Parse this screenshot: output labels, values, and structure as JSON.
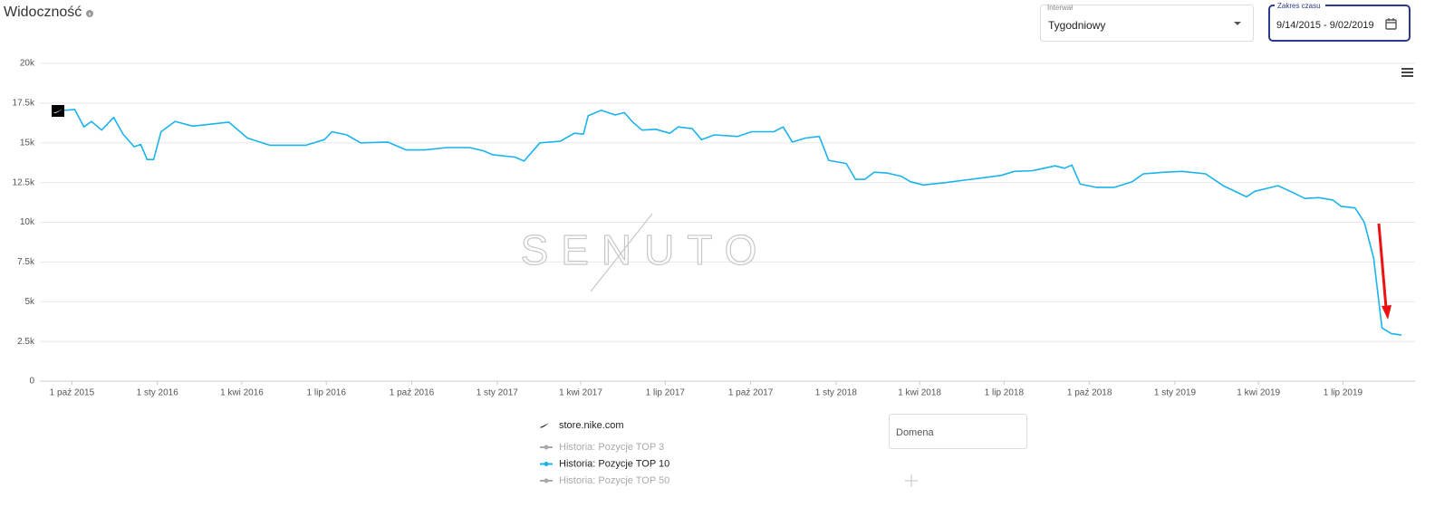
{
  "chart_data": {
    "type": "line",
    "title": "Widoczność",
    "domain": "store.nike.com",
    "watermark": "SENUTO",
    "x": [
      "2015-09-14",
      "2015-10-04",
      "2015-10-14",
      "2015-10-22",
      "2015-11-02",
      "2015-11-15",
      "2015-11-25",
      "2015-12-07",
      "2015-12-14",
      "2015-12-21",
      "2015-12-28",
      "2016-01-05",
      "2016-01-20",
      "2016-02-08",
      "2016-03-18",
      "2016-04-07",
      "2016-05-01",
      "2016-06-09",
      "2016-06-29",
      "2016-07-07",
      "2016-07-23",
      "2016-08-07",
      "2016-09-05",
      "2016-09-25",
      "2016-10-15",
      "2016-11-08",
      "2016-12-02",
      "2016-12-17",
      "2016-12-27",
      "2017-01-20",
      "2017-01-30",
      "2017-02-16",
      "2017-03-10",
      "2017-03-25",
      "2017-04-04",
      "2017-04-09",
      "2017-04-23",
      "2017-05-08",
      "2017-05-18",
      "2017-05-27",
      "2017-06-06",
      "2017-06-21",
      "2017-07-06",
      "2017-07-15",
      "2017-07-30",
      "2017-08-09",
      "2017-08-23",
      "2017-09-17",
      "2017-10-02",
      "2017-10-26",
      "2017-11-05",
      "2017-11-15",
      "2017-11-29",
      "2017-12-14",
      "2017-12-24",
      "2018-01-12",
      "2018-01-22",
      "2018-02-01",
      "2018-02-11",
      "2018-02-25",
      "2018-03-12",
      "2018-03-22",
      "2018-04-05",
      "2018-04-30",
      "2018-05-19",
      "2018-06-08",
      "2018-06-28",
      "2018-07-12",
      "2018-08-01",
      "2018-08-25",
      "2018-09-04",
      "2018-09-12",
      "2018-09-21",
      "2018-10-08",
      "2018-10-28",
      "2018-11-16",
      "2018-11-28",
      "2018-12-21",
      "2019-01-09",
      "2019-02-03",
      "2019-02-22",
      "2019-03-19",
      "2019-03-28",
      "2019-04-22",
      "2019-05-07",
      "2019-05-21",
      "2019-06-05",
      "2019-06-20",
      "2019-06-29",
      "2019-07-14",
      "2019-07-24",
      "2019-08-03",
      "2019-08-12",
      "2019-08-22",
      "2019-09-02"
    ],
    "series": [
      {
        "name": "Historia: Pozycje TOP 3",
        "color": "#aaaaaa",
        "visible": false
      },
      {
        "name": "Historia: Pozycje TOP 10",
        "color": "#1ab3ec",
        "visible": true,
        "values": [
          17000,
          17100,
          16000,
          16350,
          15800,
          16600,
          15550,
          14750,
          14900,
          13950,
          13950,
          15700,
          16350,
          16050,
          16300,
          15300,
          14850,
          14850,
          15200,
          15700,
          15500,
          15000,
          15050,
          14550,
          14550,
          14700,
          14700,
          14500,
          14250,
          14100,
          13850,
          15000,
          15100,
          15600,
          15550,
          16700,
          17050,
          16750,
          16900,
          16300,
          15800,
          15850,
          15600,
          16000,
          15900,
          15200,
          15500,
          15400,
          15700,
          15700,
          16000,
          15050,
          15300,
          15400,
          13900,
          13700,
          12700,
          12700,
          13150,
          13100,
          12900,
          12550,
          12350,
          12500,
          12650,
          12800,
          12950,
          13200,
          13250,
          13550,
          13400,
          13600,
          12400,
          12200,
          12200,
          12550,
          13050,
          13150,
          13200,
          13050,
          12300,
          11600,
          11950,
          12300,
          11900,
          11500,
          11550,
          11400,
          11000,
          10900,
          10000,
          7750,
          3350,
          3000,
          2900
        ]
      },
      {
        "name": "Historia: Pozycje TOP 50",
        "color": "#aaaaaa",
        "visible": false
      }
    ],
    "xlim": [
      "2015-09-14",
      "2019-09-02"
    ],
    "xticks": [
      {
        "value": "2015-10-01",
        "label": "1 paź 2015"
      },
      {
        "value": "2016-01-01",
        "label": "1 sty 2016"
      },
      {
        "value": "2016-04-01",
        "label": "1 kwi 2016"
      },
      {
        "value": "2016-07-01",
        "label": "1 lip 2016"
      },
      {
        "value": "2016-10-01",
        "label": "1 paź 2016"
      },
      {
        "value": "2017-01-01",
        "label": "1 sty 2017"
      },
      {
        "value": "2017-04-01",
        "label": "1 kwi 2017"
      },
      {
        "value": "2017-07-01",
        "label": "1 lip 2017"
      },
      {
        "value": "2017-10-01",
        "label": "1 paź 2017"
      },
      {
        "value": "2018-01-01",
        "label": "1 sty 2018"
      },
      {
        "value": "2018-04-01",
        "label": "1 kwi 2018"
      },
      {
        "value": "2018-07-01",
        "label": "1 lip 2018"
      },
      {
        "value": "2018-10-01",
        "label": "1 paź 2018"
      },
      {
        "value": "2019-01-01",
        "label": "1 sty 2019"
      },
      {
        "value": "2019-04-01",
        "label": "1 kwi 2019"
      },
      {
        "value": "2019-07-01",
        "label": "1 lip 2019"
      }
    ],
    "ylim": [
      0,
      20000
    ],
    "yticks": [
      0,
      {
        "value": 2500,
        "label": "2.5k"
      },
      {
        "value": 5000,
        "label": "5k"
      },
      {
        "value": 7500,
        "label": "7.5k"
      },
      {
        "value": 10000,
        "label": "10k"
      },
      {
        "value": 12500,
        "label": "12.5k"
      },
      {
        "value": 15000,
        "label": "15k"
      },
      {
        "value": 17500,
        "label": "17.5k"
      },
      {
        "value": 20000,
        "label": "20k"
      }
    ],
    "grid": true
  },
  "controls": {
    "interval": {
      "label": "Interwał",
      "value": "Tygodniowy"
    },
    "date_range": {
      "label": "Zakres czasu",
      "value": "9/14/2015 - 9/02/2019"
    },
    "domain_input": {
      "placeholder": "Domena"
    }
  }
}
